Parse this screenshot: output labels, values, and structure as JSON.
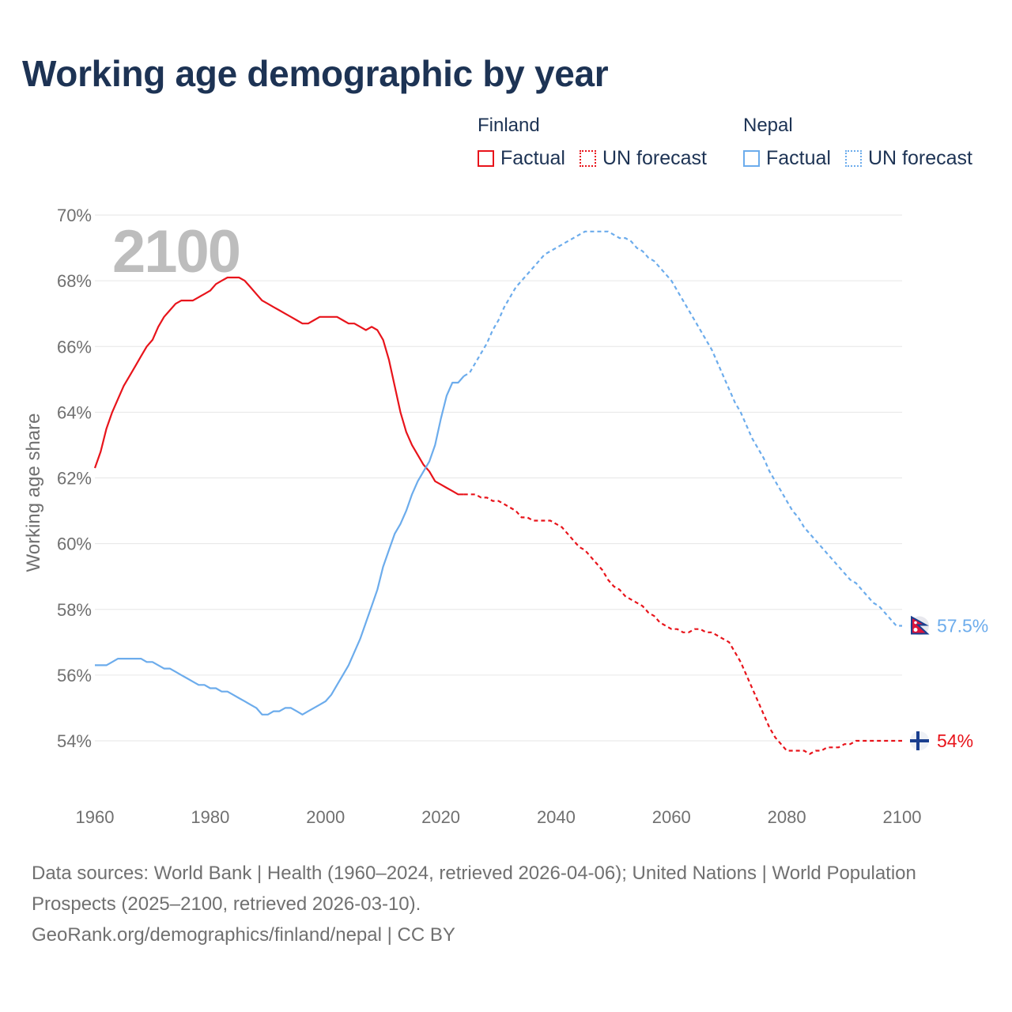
{
  "title": "Working age demographic by year",
  "legend": {
    "groups": [
      {
        "name": "Finland",
        "color": "#e8141b",
        "items": [
          {
            "label": "Factual",
            "style": "solid"
          },
          {
            "label": "UN forecast",
            "style": "dotted"
          }
        ]
      },
      {
        "name": "Nepal",
        "color": "#6cacec",
        "items": [
          {
            "label": "Factual",
            "style": "solid"
          },
          {
            "label": "UN forecast",
            "style": "dotted"
          }
        ]
      }
    ]
  },
  "footer": {
    "sources": "Data sources: World Bank | Health (1960–2024, retrieved 2026-04-06); United Nations | World Population Prospects (2025–2100, retrieved 2026-03-10).",
    "credit": "GeoRank.org/demographics/finland/nepal | CC BY"
  },
  "chart_data": {
    "type": "line",
    "title": "Working age demographic by year",
    "ylabel": "Working age share",
    "xlabel": "",
    "xlim": [
      1960,
      2100
    ],
    "ylim": [
      53,
      70
    ],
    "x_ticks": [
      1960,
      1980,
      2000,
      2020,
      2040,
      2060,
      2080,
      2100
    ],
    "x_tick_labels": [
      "1960",
      "1980",
      "2000",
      "2020",
      "2040",
      "2060",
      "2080",
      "2100"
    ],
    "y_ticks": [
      54,
      56,
      58,
      60,
      62,
      64,
      66,
      68,
      70
    ],
    "y_tick_labels": [
      "54%",
      "56%",
      "58%",
      "60%",
      "62%",
      "64%",
      "66%",
      "68%",
      "70%"
    ],
    "grid": true,
    "year_watermark": "2100",
    "forecast_start": 2024,
    "series": [
      {
        "name": "Finland",
        "color": "#e8141b",
        "end_label": "54%",
        "end_value": 54.0,
        "flag_icon": "finland-flag-icon",
        "points": [
          [
            1960,
            62.3
          ],
          [
            1961,
            62.8
          ],
          [
            1962,
            63.5
          ],
          [
            1963,
            64.0
          ],
          [
            1964,
            64.4
          ],
          [
            1965,
            64.8
          ],
          [
            1966,
            65.1
          ],
          [
            1967,
            65.4
          ],
          [
            1968,
            65.7
          ],
          [
            1969,
            66.0
          ],
          [
            1970,
            66.2
          ],
          [
            1971,
            66.6
          ],
          [
            1972,
            66.9
          ],
          [
            1973,
            67.1
          ],
          [
            1974,
            67.3
          ],
          [
            1975,
            67.4
          ],
          [
            1976,
            67.4
          ],
          [
            1977,
            67.4
          ],
          [
            1978,
            67.5
          ],
          [
            1979,
            67.6
          ],
          [
            1980,
            67.7
          ],
          [
            1981,
            67.9
          ],
          [
            1982,
            68.0
          ],
          [
            1983,
            68.1
          ],
          [
            1984,
            68.1
          ],
          [
            1985,
            68.1
          ],
          [
            1986,
            68.0
          ],
          [
            1987,
            67.8
          ],
          [
            1988,
            67.6
          ],
          [
            1989,
            67.4
          ],
          [
            1990,
            67.3
          ],
          [
            1991,
            67.2
          ],
          [
            1992,
            67.1
          ],
          [
            1993,
            67.0
          ],
          [
            1994,
            66.9
          ],
          [
            1995,
            66.8
          ],
          [
            1996,
            66.7
          ],
          [
            1997,
            66.7
          ],
          [
            1998,
            66.8
          ],
          [
            1999,
            66.9
          ],
          [
            2000,
            66.9
          ],
          [
            2001,
            66.9
          ],
          [
            2002,
            66.9
          ],
          [
            2003,
            66.8
          ],
          [
            2004,
            66.7
          ],
          [
            2005,
            66.7
          ],
          [
            2006,
            66.6
          ],
          [
            2007,
            66.5
          ],
          [
            2008,
            66.6
          ],
          [
            2009,
            66.5
          ],
          [
            2010,
            66.2
          ],
          [
            2011,
            65.6
          ],
          [
            2012,
            64.8
          ],
          [
            2013,
            64.0
          ],
          [
            2014,
            63.4
          ],
          [
            2015,
            63.0
          ],
          [
            2016,
            62.7
          ],
          [
            2017,
            62.4
          ],
          [
            2018,
            62.2
          ],
          [
            2019,
            61.9
          ],
          [
            2020,
            61.8
          ],
          [
            2021,
            61.7
          ],
          [
            2022,
            61.6
          ],
          [
            2023,
            61.5
          ],
          [
            2024,
            61.5
          ],
          [
            2025,
            61.5
          ],
          [
            2026,
            61.5
          ],
          [
            2027,
            61.4
          ],
          [
            2028,
            61.4
          ],
          [
            2029,
            61.3
          ],
          [
            2030,
            61.3
          ],
          [
            2031,
            61.2
          ],
          [
            2032,
            61.1
          ],
          [
            2033,
            61.0
          ],
          [
            2034,
            60.8
          ],
          [
            2035,
            60.8
          ],
          [
            2036,
            60.7
          ],
          [
            2037,
            60.7
          ],
          [
            2038,
            60.7
          ],
          [
            2039,
            60.7
          ],
          [
            2040,
            60.6
          ],
          [
            2041,
            60.5
          ],
          [
            2042,
            60.3
          ],
          [
            2043,
            60.1
          ],
          [
            2044,
            59.9
          ],
          [
            2045,
            59.8
          ],
          [
            2046,
            59.6
          ],
          [
            2047,
            59.4
          ],
          [
            2048,
            59.2
          ],
          [
            2049,
            58.9
          ],
          [
            2050,
            58.7
          ],
          [
            2051,
            58.6
          ],
          [
            2052,
            58.4
          ],
          [
            2053,
            58.3
          ],
          [
            2054,
            58.2
          ],
          [
            2055,
            58.1
          ],
          [
            2056,
            57.9
          ],
          [
            2057,
            57.8
          ],
          [
            2058,
            57.6
          ],
          [
            2059,
            57.5
          ],
          [
            2060,
            57.4
          ],
          [
            2061,
            57.4
          ],
          [
            2062,
            57.3
          ],
          [
            2063,
            57.3
          ],
          [
            2064,
            57.4
          ],
          [
            2065,
            57.4
          ],
          [
            2066,
            57.3
          ],
          [
            2067,
            57.3
          ],
          [
            2068,
            57.2
          ],
          [
            2069,
            57.1
          ],
          [
            2070,
            57.0
          ],
          [
            2071,
            56.7
          ],
          [
            2072,
            56.4
          ],
          [
            2073,
            56.0
          ],
          [
            2074,
            55.6
          ],
          [
            2075,
            55.2
          ],
          [
            2076,
            54.8
          ],
          [
            2077,
            54.4
          ],
          [
            2078,
            54.1
          ],
          [
            2079,
            53.9
          ],
          [
            2080,
            53.7
          ],
          [
            2081,
            53.7
          ],
          [
            2082,
            53.7
          ],
          [
            2083,
            53.7
          ],
          [
            2084,
            53.6
          ],
          [
            2085,
            53.7
          ],
          [
            2086,
            53.7
          ],
          [
            2087,
            53.8
          ],
          [
            2088,
            53.8
          ],
          [
            2089,
            53.8
          ],
          [
            2090,
            53.9
          ],
          [
            2091,
            53.9
          ],
          [
            2092,
            54.0
          ],
          [
            2093,
            54.0
          ],
          [
            2094,
            54.0
          ],
          [
            2095,
            54.0
          ],
          [
            2096,
            54.0
          ],
          [
            2097,
            54.0
          ],
          [
            2098,
            54.0
          ],
          [
            2099,
            54.0
          ],
          [
            2100,
            54.0
          ]
        ]
      },
      {
        "name": "Nepal",
        "color": "#6cacec",
        "end_label": "57.5%",
        "end_value": 57.5,
        "flag_icon": "nepal-flag-icon",
        "points": [
          [
            1960,
            56.3
          ],
          [
            1961,
            56.3
          ],
          [
            1962,
            56.3
          ],
          [
            1963,
            56.4
          ],
          [
            1964,
            56.5
          ],
          [
            1965,
            56.5
          ],
          [
            1966,
            56.5
          ],
          [
            1967,
            56.5
          ],
          [
            1968,
            56.5
          ],
          [
            1969,
            56.4
          ],
          [
            1970,
            56.4
          ],
          [
            1971,
            56.3
          ],
          [
            1972,
            56.2
          ],
          [
            1973,
            56.2
          ],
          [
            1974,
            56.1
          ],
          [
            1975,
            56.0
          ],
          [
            1976,
            55.9
          ],
          [
            1977,
            55.8
          ],
          [
            1978,
            55.7
          ],
          [
            1979,
            55.7
          ],
          [
            1980,
            55.6
          ],
          [
            1981,
            55.6
          ],
          [
            1982,
            55.5
          ],
          [
            1983,
            55.5
          ],
          [
            1984,
            55.4
          ],
          [
            1985,
            55.3
          ],
          [
            1986,
            55.2
          ],
          [
            1987,
            55.1
          ],
          [
            1988,
            55.0
          ],
          [
            1989,
            54.8
          ],
          [
            1990,
            54.8
          ],
          [
            1991,
            54.9
          ],
          [
            1992,
            54.9
          ],
          [
            1993,
            55.0
          ],
          [
            1994,
            55.0
          ],
          [
            1995,
            54.9
          ],
          [
            1996,
            54.8
          ],
          [
            1997,
            54.9
          ],
          [
            1998,
            55.0
          ],
          [
            1999,
            55.1
          ],
          [
            2000,
            55.2
          ],
          [
            2001,
            55.4
          ],
          [
            2002,
            55.7
          ],
          [
            2003,
            56.0
          ],
          [
            2004,
            56.3
          ],
          [
            2005,
            56.7
          ],
          [
            2006,
            57.1
          ],
          [
            2007,
            57.6
          ],
          [
            2008,
            58.1
          ],
          [
            2009,
            58.6
          ],
          [
            2010,
            59.3
          ],
          [
            2011,
            59.8
          ],
          [
            2012,
            60.3
          ],
          [
            2013,
            60.6
          ],
          [
            2014,
            61.0
          ],
          [
            2015,
            61.5
          ],
          [
            2016,
            61.9
          ],
          [
            2017,
            62.2
          ],
          [
            2018,
            62.5
          ],
          [
            2019,
            63.0
          ],
          [
            2020,
            63.8
          ],
          [
            2021,
            64.5
          ],
          [
            2022,
            64.9
          ],
          [
            2023,
            64.9
          ],
          [
            2024,
            65.1
          ],
          [
            2025,
            65.2
          ],
          [
            2026,
            65.5
          ],
          [
            2027,
            65.8
          ],
          [
            2028,
            66.1
          ],
          [
            2029,
            66.5
          ],
          [
            2030,
            66.8
          ],
          [
            2031,
            67.2
          ],
          [
            2032,
            67.5
          ],
          [
            2033,
            67.8
          ],
          [
            2034,
            68.0
          ],
          [
            2035,
            68.2
          ],
          [
            2036,
            68.4
          ],
          [
            2037,
            68.6
          ],
          [
            2038,
            68.8
          ],
          [
            2039,
            68.9
          ],
          [
            2040,
            69.0
          ],
          [
            2041,
            69.1
          ],
          [
            2042,
            69.2
          ],
          [
            2043,
            69.3
          ],
          [
            2044,
            69.4
          ],
          [
            2045,
            69.5
          ],
          [
            2046,
            69.5
          ],
          [
            2047,
            69.5
          ],
          [
            2048,
            69.5
          ],
          [
            2049,
            69.5
          ],
          [
            2050,
            69.4
          ],
          [
            2051,
            69.3
          ],
          [
            2052,
            69.3
          ],
          [
            2053,
            69.2
          ],
          [
            2054,
            69.0
          ],
          [
            2055,
            68.9
          ],
          [
            2056,
            68.7
          ],
          [
            2057,
            68.6
          ],
          [
            2058,
            68.4
          ],
          [
            2059,
            68.2
          ],
          [
            2060,
            68.0
          ],
          [
            2061,
            67.7
          ],
          [
            2062,
            67.4
          ],
          [
            2063,
            67.1
          ],
          [
            2064,
            66.8
          ],
          [
            2065,
            66.5
          ],
          [
            2066,
            66.2
          ],
          [
            2067,
            65.9
          ],
          [
            2068,
            65.5
          ],
          [
            2069,
            65.1
          ],
          [
            2070,
            64.7
          ],
          [
            2071,
            64.3
          ],
          [
            2072,
            64.0
          ],
          [
            2073,
            63.6
          ],
          [
            2074,
            63.2
          ],
          [
            2075,
            62.9
          ],
          [
            2076,
            62.6
          ],
          [
            2077,
            62.2
          ],
          [
            2078,
            61.9
          ],
          [
            2079,
            61.6
          ],
          [
            2080,
            61.3
          ],
          [
            2081,
            61.0
          ],
          [
            2082,
            60.8
          ],
          [
            2083,
            60.5
          ],
          [
            2084,
            60.3
          ],
          [
            2085,
            60.1
          ],
          [
            2086,
            59.9
          ],
          [
            2087,
            59.7
          ],
          [
            2088,
            59.5
          ],
          [
            2089,
            59.3
          ],
          [
            2090,
            59.1
          ],
          [
            2091,
            58.9
          ],
          [
            2092,
            58.8
          ],
          [
            2093,
            58.6
          ],
          [
            2094,
            58.4
          ],
          [
            2095,
            58.2
          ],
          [
            2096,
            58.1
          ],
          [
            2097,
            57.9
          ],
          [
            2098,
            57.7
          ],
          [
            2099,
            57.5
          ],
          [
            2100,
            57.5
          ]
        ]
      }
    ]
  }
}
